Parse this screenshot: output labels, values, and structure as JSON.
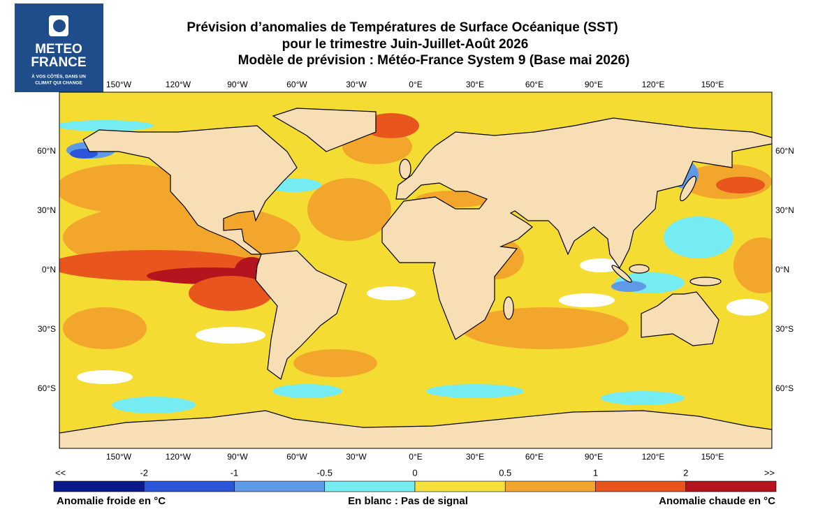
{
  "logo": {
    "name_line1": "METEO",
    "name_line2": "FRANCE",
    "tagline_line1": "À VOS CÔTÉS, DANS UN",
    "tagline_line2": "CLIMAT QUI CHANGE"
  },
  "header": {
    "title_lines": [
      "Prévision d’anomalies de Températures de Surface Océanique (SST)",
      "pour le trimestre Juin-Juillet-Août 2026",
      "Modèle de prévision : Météo-France System 9 (Base mai 2026)"
    ]
  },
  "map": {
    "longitude_labels": [
      "150°W",
      "120°W",
      "90°W",
      "60°W",
      "30°W",
      "0°E",
      "30°E",
      "60°E",
      "90°E",
      "120°E",
      "150°E"
    ],
    "latitude_labels": [
      "60°N",
      "30°N",
      "0°N",
      "30°S",
      "60°S"
    ]
  },
  "colorbar": {
    "labels": [
      "<<",
      "-2",
      "-1",
      "-0.5",
      "0",
      "0.5",
      "1",
      "2",
      ">>"
    ],
    "colors": [
      "#0a1a8c",
      "#2d55dc",
      "#5f9ae8",
      "#74ecf2",
      "#f5e03c",
      "#f2a62c",
      "#e8561e",
      "#b3141e"
    ]
  },
  "legend": {
    "left": "Anomalie froide en °C",
    "center": "En blanc : Pas de signal",
    "right": "Anomalie chaude en °C"
  }
}
